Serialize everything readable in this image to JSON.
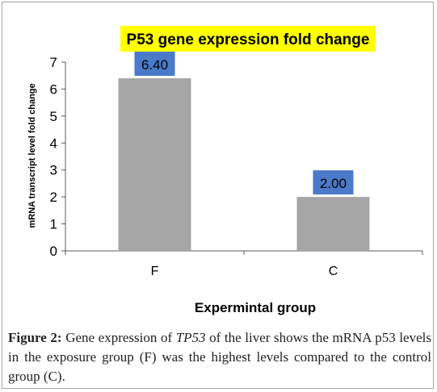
{
  "chart_data": {
    "type": "bar",
    "title": "P53 gene expression fold change",
    "categories": [
      "F",
      "C"
    ],
    "values": [
      6.4,
      2.0
    ],
    "data_labels": [
      "6.40",
      "2.00"
    ],
    "xlabel": "Expermintal group",
    "ylabel": "mRNA transcript level fold change",
    "ylim": [
      0,
      7
    ],
    "yticks": [
      "0",
      "1",
      "2",
      "3",
      "4",
      "5",
      "6",
      "7"
    ],
    "grid": false,
    "legend": "none"
  },
  "colors": {
    "bar": "#a6a6a6",
    "data_label_bg": "#4a7ac9",
    "title_bg": "#ffff00",
    "axis": "#595959"
  },
  "caption": {
    "label": "Figure 2:",
    "pre": " Gene expression of ",
    "gene": "TP53",
    "post": " of the liver shows the mRNA p53 levels in the exposure group (F) was the highest levels compared to the control group (C)."
  }
}
